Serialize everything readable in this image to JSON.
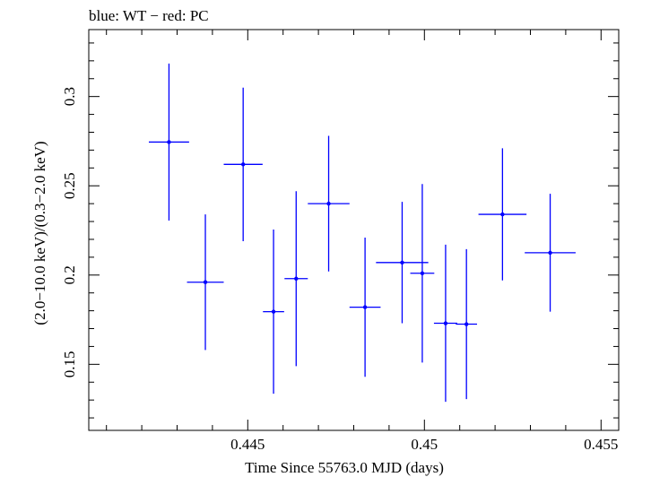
{
  "chart_data": {
    "type": "scatter",
    "title": "blue: WT − red: PC",
    "xlabel": "Time Since 55763.0 MJD (days)",
    "ylabel": "(2.0−10.0 keV)/(0.3−2.0 keV)",
    "xlim": [
      0.4405,
      0.4555
    ],
    "ylim": [
      0.113,
      0.3375
    ],
    "xticks": [
      0.445,
      0.45,
      0.455
    ],
    "xtick_labels": [
      "0.445",
      "0.45",
      "0.455"
    ],
    "yticks": [
      0.15,
      0.2,
      0.25,
      0.3
    ],
    "ytick_labels": [
      "0.15",
      "0.2",
      "0.25",
      "0.3"
    ],
    "series": [
      {
        "name": "WT",
        "color": "#0000ff",
        "points": [
          {
            "x": 0.44277,
            "y": 0.2745,
            "xerr": 0.00057,
            "yerr": 0.044
          },
          {
            "x": 0.4438,
            "y": 0.196,
            "xerr": 0.00052,
            "yerr": 0.038
          },
          {
            "x": 0.44487,
            "y": 0.262,
            "xerr": 0.00055,
            "yerr": 0.043
          },
          {
            "x": 0.44573,
            "y": 0.1795,
            "xerr": 0.0003,
            "yerr": 0.046
          },
          {
            "x": 0.44637,
            "y": 0.198,
            "xerr": 0.00033,
            "yerr": 0.049
          },
          {
            "x": 0.44729,
            "y": 0.24,
            "xerr": 0.00059,
            "yerr": 0.038
          },
          {
            "x": 0.44832,
            "y": 0.182,
            "xerr": 0.00044,
            "yerr": 0.039
          },
          {
            "x": 0.44937,
            "y": 0.207,
            "xerr": 0.00074,
            "yerr": 0.034
          },
          {
            "x": 0.44994,
            "y": 0.201,
            "xerr": 0.00034,
            "yerr": 0.05
          },
          {
            "x": 0.4506,
            "y": 0.173,
            "xerr": 0.00033,
            "yerr": 0.044
          },
          {
            "x": 0.45119,
            "y": 0.1725,
            "xerr": 0.0003,
            "yerr": 0.042
          },
          {
            "x": 0.45221,
            "y": 0.234,
            "xerr": 0.00068,
            "yerr": 0.037
          },
          {
            "x": 0.45356,
            "y": 0.2125,
            "xerr": 0.00072,
            "yerr": 0.033
          }
        ]
      }
    ]
  }
}
